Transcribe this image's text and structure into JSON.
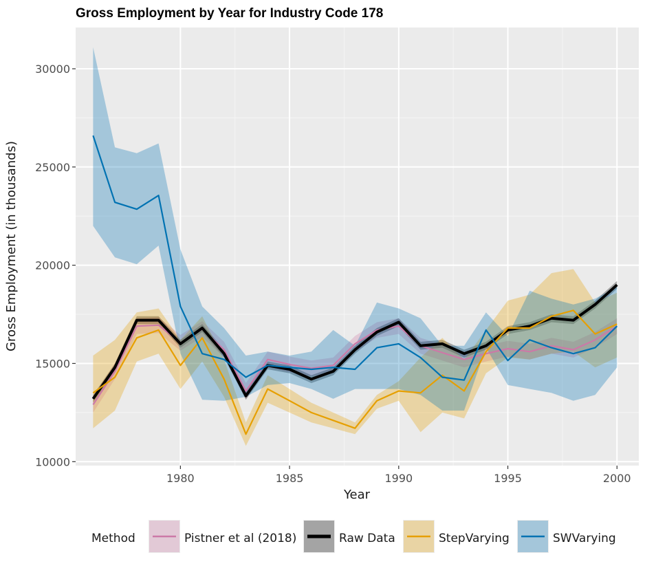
{
  "chart_data": {
    "type": "line",
    "title": "Gross Employment by Year for Industry Code 178",
    "xlabel": "Year",
    "ylabel": "Gross Employment (in thousands)",
    "xlim": [
      1975.2,
      2001
    ],
    "ylim": [
      9800,
      32100
    ],
    "x_ticks": [
      1980,
      1985,
      1990,
      1995,
      2000
    ],
    "y_ticks": [
      10000,
      15000,
      20000,
      25000,
      30000
    ],
    "grid": true,
    "legend": {
      "title": "Method",
      "position": "bottom"
    },
    "x": [
      1976,
      1977,
      1978,
      1979,
      1980,
      1981,
      1982,
      1983,
      1984,
      1985,
      1986,
      1987,
      1988,
      1989,
      1990,
      1991,
      1992,
      1993,
      1994,
      1995,
      1996,
      1997,
      1998,
      1999,
      2000
    ],
    "series": [
      {
        "name": "Pistner et al (2018)",
        "color": "#cc79a7",
        "values": [
          12900,
          14600,
          16900,
          16950,
          16050,
          16750,
          15700,
          13600,
          15200,
          14950,
          14750,
          14900,
          16000,
          16700,
          16900,
          15900,
          15550,
          15200,
          15500,
          15750,
          15600,
          15900,
          15700,
          16200,
          16900
        ],
        "lower": [
          12500,
          14200,
          16500,
          16550,
          15650,
          16350,
          15300,
          13200,
          14800,
          14550,
          14350,
          14500,
          15600,
          16300,
          16500,
          15500,
          15150,
          14800,
          15100,
          15350,
          15200,
          15500,
          15300,
          15800,
          16500
        ],
        "upper": [
          13300,
          15000,
          17300,
          17350,
          16450,
          17150,
          16100,
          14000,
          15600,
          15350,
          15150,
          15300,
          16400,
          17100,
          17300,
          16300,
          15950,
          15600,
          15900,
          16150,
          16000,
          16300,
          16100,
          16600,
          17300
        ]
      },
      {
        "name": "Raw Data",
        "color": "#000000",
        "values": [
          13200,
          14800,
          17200,
          17200,
          16000,
          16800,
          15500,
          13350,
          14900,
          14700,
          14200,
          14600,
          15700,
          16600,
          17100,
          15900,
          16000,
          15500,
          15900,
          16700,
          16900,
          17300,
          17200,
          18000,
          19000
        ],
        "lower": [
          13000,
          14600,
          17000,
          17000,
          15800,
          16600,
          15300,
          13150,
          14700,
          14500,
          14000,
          14400,
          15500,
          16400,
          16900,
          15700,
          15800,
          15300,
          15700,
          16500,
          16700,
          17100,
          17000,
          17800,
          18800
        ],
        "upper": [
          13400,
          15000,
          17400,
          17400,
          16200,
          17000,
          15700,
          13550,
          15100,
          14900,
          14400,
          14800,
          15900,
          16800,
          17300,
          16100,
          16200,
          15700,
          16100,
          16900,
          17100,
          17500,
          17400,
          18200,
          19200
        ]
      },
      {
        "name": "StepVarying",
        "color": "#e69f00",
        "values": [
          13500,
          14300,
          16300,
          16700,
          14900,
          16300,
          14200,
          11400,
          13700,
          13100,
          12500,
          12100,
          11700,
          13100,
          13600,
          13500,
          14400,
          13600,
          15600,
          16800,
          16800,
          17400,
          17700,
          16500,
          17000
        ],
        "lower": [
          11700,
          12600,
          15100,
          15500,
          13700,
          15100,
          13300,
          10800,
          13000,
          12500,
          12000,
          11700,
          11400,
          12700,
          13100,
          11500,
          12500,
          12200,
          14500,
          15300,
          15200,
          15500,
          15600,
          14800,
          15300
        ],
        "upper": [
          15400,
          16200,
          17600,
          17800,
          16200,
          17400,
          15200,
          12000,
          14400,
          13700,
          13000,
          12500,
          12000,
          13400,
          14100,
          15300,
          16300,
          15200,
          16700,
          18200,
          18500,
          19600,
          19800,
          18100,
          18600
        ]
      },
      {
        "name": "SWVarying",
        "color": "#0072b2",
        "values": [
          26600,
          23200,
          22850,
          23550,
          17900,
          15500,
          15200,
          14300,
          14900,
          14800,
          14700,
          14800,
          14700,
          15800,
          16000,
          15300,
          14300,
          14150,
          16700,
          15150,
          16200,
          15800,
          15500,
          15800,
          16900
        ],
        "lower": [
          22000,
          20400,
          20050,
          21000,
          15500,
          13150,
          13100,
          13300,
          13900,
          14000,
          13700,
          13200,
          13700,
          13700,
          13700,
          13400,
          12600,
          12600,
          15800,
          13900,
          13700,
          13500,
          13100,
          13400,
          14800
        ],
        "upper": [
          31100,
          26000,
          25700,
          26200,
          20800,
          17900,
          16800,
          15400,
          15600,
          15400,
          15600,
          16700,
          15900,
          18100,
          17800,
          17300,
          15900,
          15900,
          17600,
          16400,
          18700,
          18300,
          18000,
          18300,
          18900
        ]
      }
    ]
  }
}
